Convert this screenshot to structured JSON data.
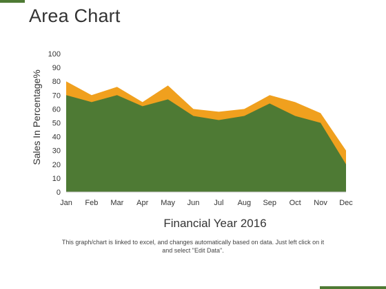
{
  "slide": {
    "title": "Area Chart",
    "footnote_line1": "This graph/chart is linked to excel, and changes automatically based on data. Just left click on it",
    "footnote_line2": "and select \"Edit Data\".",
    "accent_color": "#4e7a34"
  },
  "chart_data": {
    "type": "area",
    "title": "",
    "xlabel": "Financial Year 2016",
    "ylabel": "Sales In Percentage%",
    "categories": [
      "Jan",
      "Feb",
      "Mar",
      "Apr",
      "May",
      "Jun",
      "Jul",
      "Aug",
      "Sep",
      "Oct",
      "Nov",
      "Dec"
    ],
    "ylim": [
      0,
      100
    ],
    "yticks": [
      0,
      10,
      20,
      30,
      40,
      50,
      60,
      70,
      80,
      90,
      100
    ],
    "grid": false,
    "legend": "none",
    "series": [
      {
        "values": [
          80,
          70,
          76,
          65,
          77,
          60,
          58,
          60,
          70,
          65,
          57,
          30
        ],
        "color": "#f0a01e"
      },
      {
        "values": [
          70,
          65,
          70,
          62,
          67,
          55,
          52,
          55,
          64,
          55,
          50,
          20
        ],
        "color": "#4e7a34"
      }
    ]
  }
}
